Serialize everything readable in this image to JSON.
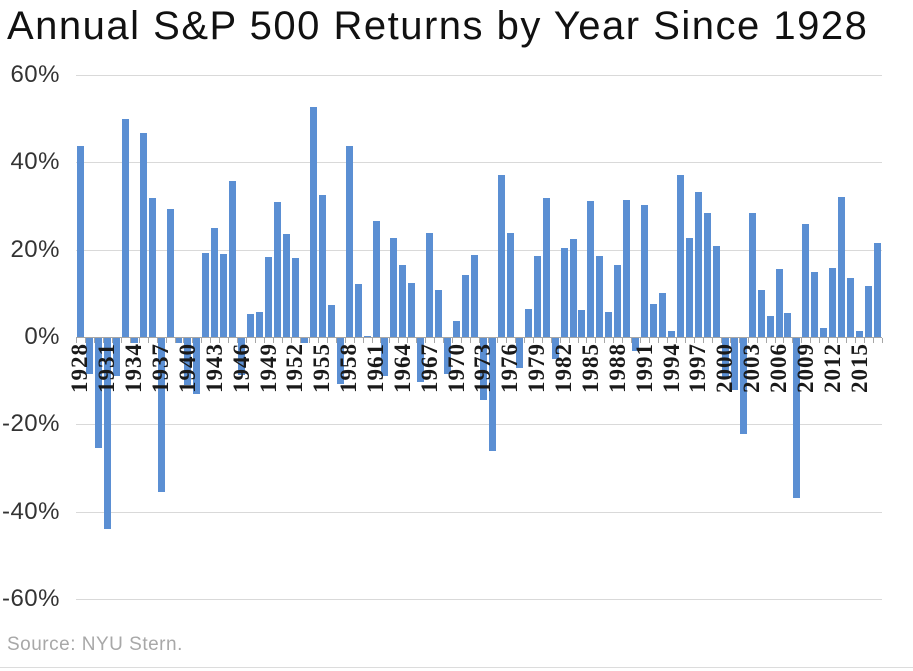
{
  "title": "Annual S&P 500 Returns by Year Since 1928",
  "source": "Source: NYU Stern.",
  "colors": {
    "bar": "#5B8FD3",
    "gridline": "#D9D9D9",
    "axis": "#A6A6A6",
    "title_text": "#111111",
    "axis_label_text": "#333333",
    "x_label_text": "#1A1A1A",
    "source_text": "#A8A8A8",
    "background": "#FFFFFF"
  },
  "chart_data": {
    "type": "bar",
    "title": "Annual S&P 500 Returns by Year Since 1928",
    "xlabel": "",
    "ylabel": "",
    "ylim": [
      -60,
      60
    ],
    "y_ticks": [
      60,
      40,
      20,
      0,
      -20,
      -40,
      -60
    ],
    "y_tick_suffix": "%",
    "x_label_interval": 3,
    "grid": "horizontal",
    "legend_position": "none",
    "categories": [
      1928,
      1929,
      1930,
      1931,
      1932,
      1933,
      1934,
      1935,
      1936,
      1937,
      1938,
      1939,
      1940,
      1941,
      1942,
      1943,
      1944,
      1945,
      1946,
      1947,
      1948,
      1949,
      1950,
      1951,
      1952,
      1953,
      1954,
      1955,
      1956,
      1957,
      1958,
      1959,
      1960,
      1961,
      1962,
      1963,
      1964,
      1965,
      1966,
      1967,
      1968,
      1969,
      1970,
      1971,
      1972,
      1973,
      1974,
      1975,
      1976,
      1977,
      1978,
      1979,
      1980,
      1981,
      1982,
      1983,
      1984,
      1985,
      1986,
      1987,
      1988,
      1989,
      1990,
      1991,
      1992,
      1993,
      1994,
      1995,
      1996,
      1997,
      1998,
      1999,
      2000,
      2001,
      2002,
      2003,
      2004,
      2005,
      2006,
      2007,
      2008,
      2009,
      2010,
      2011,
      2012,
      2013,
      2014,
      2015,
      2016,
      2017
    ],
    "values": [
      43.81,
      -8.3,
      -25.12,
      -43.84,
      -8.64,
      49.98,
      -1.19,
      46.74,
      31.94,
      -35.34,
      29.28,
      -1.1,
      -10.67,
      -12.77,
      19.17,
      25.06,
      19.03,
      35.82,
      -8.43,
      5.2,
      5.7,
      18.3,
      30.81,
      23.68,
      18.15,
      -1.21,
      52.56,
      32.6,
      7.44,
      -10.46,
      43.72,
      12.06,
      0.34,
      26.64,
      -8.81,
      22.61,
      16.42,
      12.4,
      -9.97,
      23.8,
      10.81,
      -8.24,
      3.56,
      14.22,
      18.76,
      -14.31,
      -25.9,
      37.0,
      23.83,
      -6.98,
      6.51,
      18.52,
      31.74,
      -4.7,
      20.42,
      22.34,
      6.15,
      31.24,
      18.49,
      5.81,
      16.54,
      31.48,
      -3.06,
      30.23,
      7.49,
      9.97,
      1.33,
      37.2,
      22.68,
      33.1,
      28.34,
      20.89,
      -9.03,
      -11.85,
      -21.97,
      28.36,
      10.74,
      4.83,
      15.61,
      5.48,
      -36.55,
      25.94,
      14.82,
      2.1,
      15.89,
      32.15,
      13.52,
      1.38,
      11.77,
      21.61
    ]
  }
}
